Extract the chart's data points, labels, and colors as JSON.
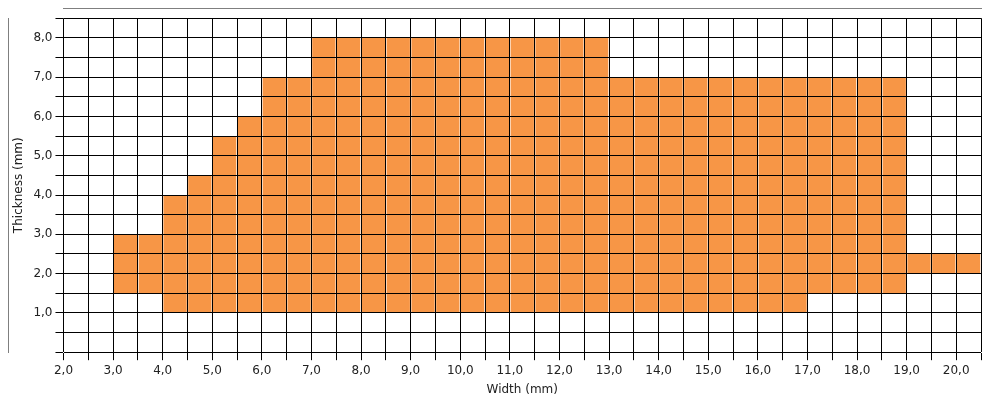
{
  "chart_data": {
    "type": "bar",
    "xlabel": "Width (mm)",
    "ylabel": "Thickness (mm)",
    "color": "#f79646",
    "grid": true,
    "legend": false,
    "x": [
      3.25,
      3.75,
      4.25,
      4.75,
      5.25,
      5.75,
      6.25,
      6.75,
      7.25,
      7.75,
      8.25,
      8.75,
      9.25,
      9.75,
      10.25,
      10.75,
      11.25,
      11.75,
      12.25,
      12.75,
      13.25,
      13.75,
      14.25,
      14.75,
      15.25,
      15.75,
      16.25,
      16.75,
      17.25,
      17.75,
      18.25,
      18.75,
      19.25,
      19.75,
      20.25
    ],
    "base": [
      1.5,
      1.5,
      1,
      1,
      1,
      1,
      1,
      1,
      1,
      1,
      1,
      1,
      1,
      1,
      1,
      1,
      1,
      1,
      1,
      1,
      1,
      1,
      1,
      1,
      1,
      1,
      1,
      1,
      1.5,
      1.5,
      1.5,
      1.5,
      2,
      2,
      2
    ],
    "values": [
      1.5,
      1.5,
      3,
      3.5,
      4.5,
      5,
      6,
      6,
      7,
      7,
      7,
      7,
      7,
      7,
      7,
      7,
      7,
      7,
      7,
      7,
      6,
      6,
      6,
      6,
      6,
      6,
      6,
      6,
      5.5,
      5.5,
      5.5,
      5.5,
      0.5,
      0.5,
      0.5
    ],
    "xlim": [
      2,
      20.5
    ],
    "xticks": [
      {
        "value": 2,
        "label": "2,0"
      },
      {
        "value": 2.5,
        "label": null
      },
      {
        "value": 3,
        "label": "3,0"
      },
      {
        "value": 3.5,
        "label": null
      },
      {
        "value": 4,
        "label": "4,0"
      },
      {
        "value": 4.5,
        "label": null
      },
      {
        "value": 5,
        "label": "5,0"
      },
      {
        "value": 5.5,
        "label": null
      },
      {
        "value": 6,
        "label": "6,0"
      },
      {
        "value": 6.5,
        "label": null
      },
      {
        "value": 7,
        "label": "7,0"
      },
      {
        "value": 7.5,
        "label": null
      },
      {
        "value": 8,
        "label": "8,0"
      },
      {
        "value": 8.5,
        "label": null
      },
      {
        "value": 9,
        "label": "9,0"
      },
      {
        "value": 9.5,
        "label": null
      },
      {
        "value": 10,
        "label": "10,0"
      },
      {
        "value": 10.5,
        "label": null
      },
      {
        "value": 11,
        "label": "11,0"
      },
      {
        "value": 11.5,
        "label": null
      },
      {
        "value": 12,
        "label": "12,0"
      },
      {
        "value": 12.5,
        "label": null
      },
      {
        "value": 13,
        "label": "13,0"
      },
      {
        "value": 13.5,
        "label": null
      },
      {
        "value": 14,
        "label": "14,0"
      },
      {
        "value": 14.5,
        "label": null
      },
      {
        "value": 15,
        "label": "15,0"
      },
      {
        "value": 15.5,
        "label": null
      },
      {
        "value": 16,
        "label": "16,0"
      },
      {
        "value": 16.5,
        "label": null
      },
      {
        "value": 17,
        "label": "17,0"
      },
      {
        "value": 17.5,
        "label": null
      },
      {
        "value": 18,
        "label": "18,0"
      },
      {
        "value": 18.5,
        "label": null
      },
      {
        "value": 19,
        "label": "19,0"
      },
      {
        "value": 19.5,
        "label": null
      },
      {
        "value": 20,
        "label": "20,0"
      },
      {
        "value": 20.5,
        "label": null
      }
    ],
    "ylim": [
      0,
      8.5
    ],
    "yticks": [
      {
        "value": 0,
        "label": null
      },
      {
        "value": 0.5,
        "label": null
      },
      {
        "value": 1,
        "label": "1,0"
      },
      {
        "value": 1.5,
        "label": null
      },
      {
        "value": 2,
        "label": "2,0"
      },
      {
        "value": 2.5,
        "label": null
      },
      {
        "value": 3,
        "label": "3,0"
      },
      {
        "value": 3.5,
        "label": null
      },
      {
        "value": 4,
        "label": "4,0"
      },
      {
        "value": 4.5,
        "label": null
      },
      {
        "value": 5,
        "label": "5,0"
      },
      {
        "value": 5.5,
        "label": null
      },
      {
        "value": 6,
        "label": "6,0"
      },
      {
        "value": 6.5,
        "label": null
      },
      {
        "value": 7,
        "label": "7,0"
      },
      {
        "value": 7.5,
        "label": null
      },
      {
        "value": 8,
        "label": "8,0"
      },
      {
        "value": 8.5,
        "label": null
      }
    ]
  }
}
